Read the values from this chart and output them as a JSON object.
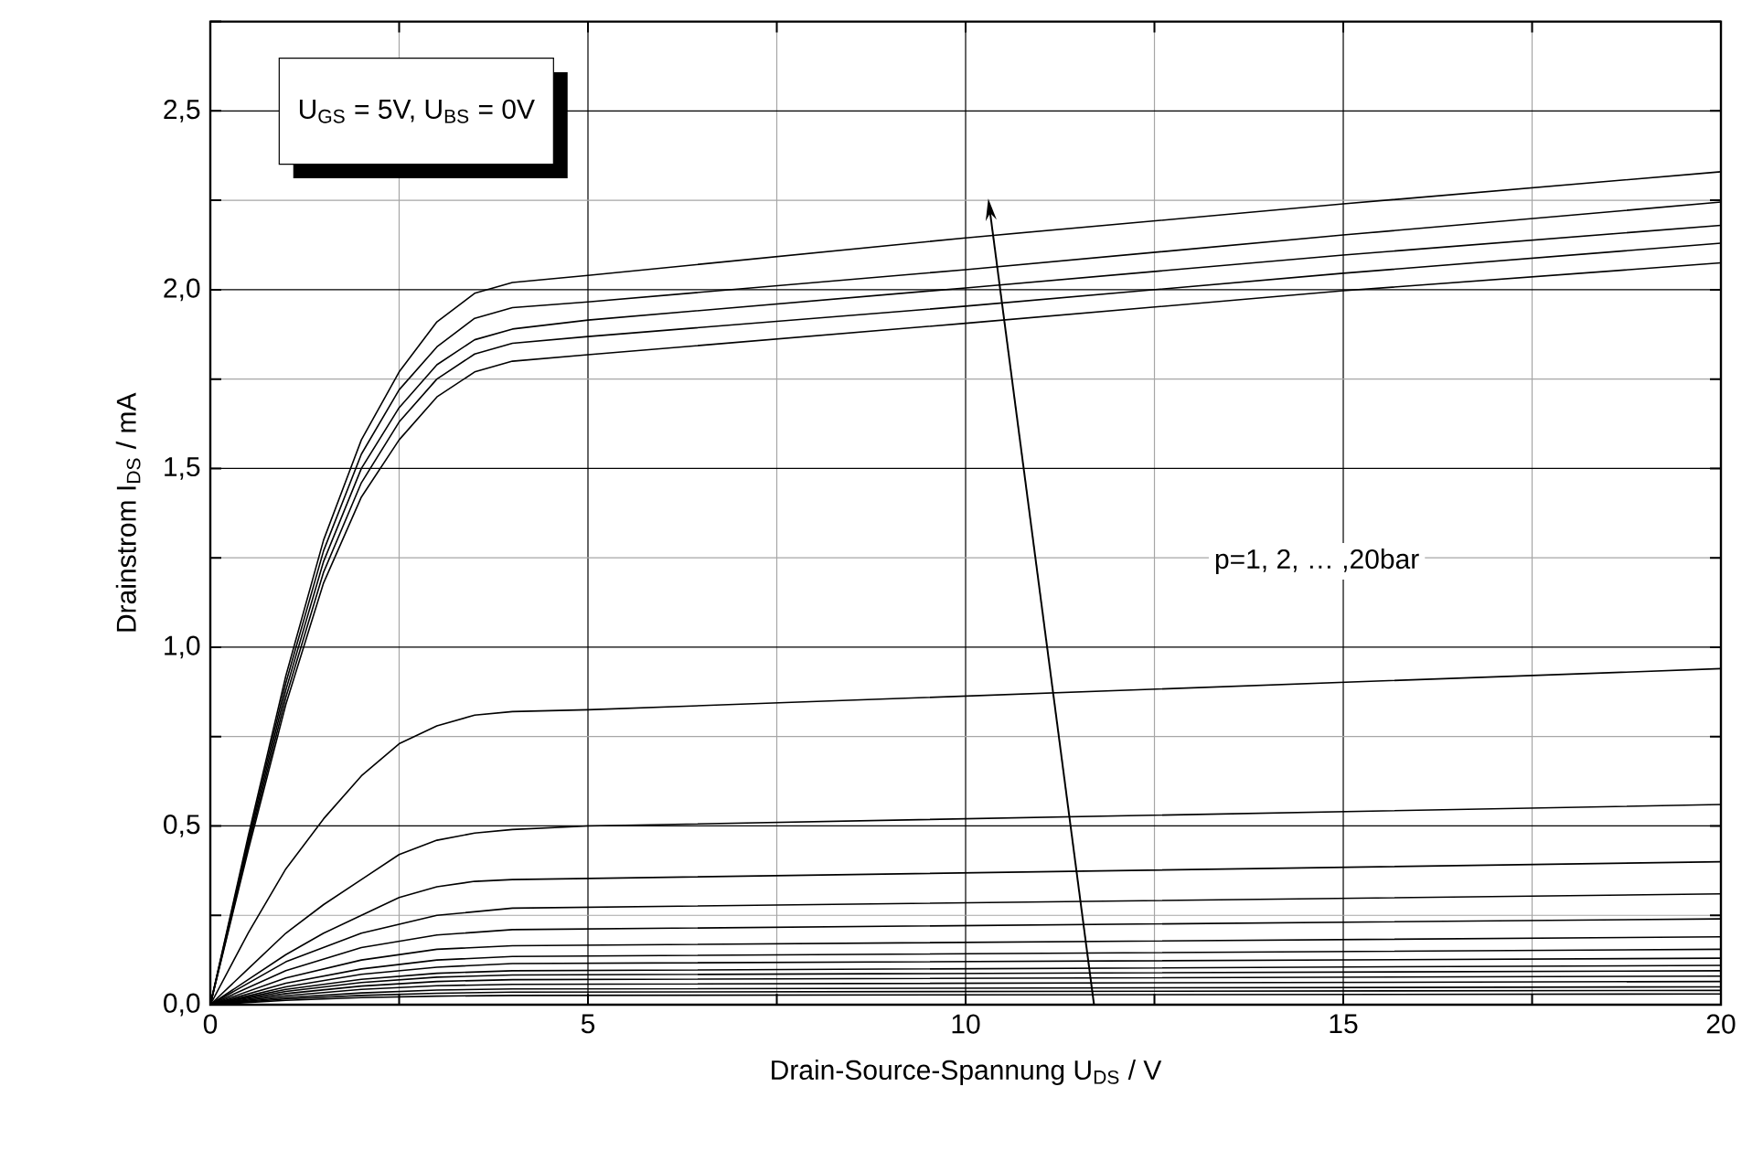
{
  "chart_data": {
    "type": "line",
    "xlabel": "Drain-Source-Spannung U$_{DS}$ / V",
    "ylabel": "Drainstrom I$_{DS}$ / mA",
    "xlim": [
      0,
      20
    ],
    "ylim": [
      0,
      2.75
    ],
    "xticks": [
      0,
      {
        "value": 2.5,
        "label": null
      },
      5,
      {
        "value": 7.5,
        "label": null
      },
      10,
      {
        "value": 12.5,
        "label": null
      },
      15,
      {
        "value": 17.5,
        "label": null
      },
      20
    ],
    "yticks": [
      {
        "value": 0,
        "label": "0,0"
      },
      {
        "value": 0.25,
        "label": null
      },
      {
        "value": 0.5,
        "label": "0,5"
      },
      {
        "value": 0.75,
        "label": null
      },
      {
        "value": 1.0,
        "label": "1,0"
      },
      {
        "value": 1.25,
        "label": null
      },
      {
        "value": 1.5,
        "label": "1,5"
      },
      {
        "value": 1.75,
        "label": null
      },
      {
        "value": 2.0,
        "label": "2,0"
      },
      {
        "value": 2.25,
        "label": null
      },
      {
        "value": 2.5,
        "label": "2,5"
      },
      {
        "value": 2.75,
        "label": null
      }
    ],
    "grid": true,
    "line_style": "solid",
    "marker": "none",
    "annotations": [
      "U$_{GS}$ = 5V, U$_{BS}$ = 0V",
      "p=1, 2, … ,20bar"
    ],
    "series": [
      {
        "color": "#000000",
        "x": [
          0,
          0.5,
          1,
          1.5,
          2,
          2.5,
          3,
          3.5,
          4,
          5,
          10,
          15,
          20
        ],
        "values": [
          0,
          0.47,
          0.92,
          1.3,
          1.58,
          1.77,
          1.91,
          1.99,
          2.02,
          2.04,
          2.145,
          2.24,
          2.33
        ]
      },
      {
        "color": "#000000",
        "x": [
          0,
          0.5,
          1,
          1.5,
          2,
          2.5,
          3,
          3.5,
          4,
          5,
          10,
          15,
          20
        ],
        "values": [
          0,
          0.46,
          0.9,
          1.27,
          1.54,
          1.72,
          1.84,
          1.92,
          1.95,
          1.966,
          2.056,
          2.153,
          2.245
        ]
      },
      {
        "color": "#000000",
        "x": [
          0,
          0.5,
          1,
          1.5,
          2,
          2.5,
          3,
          3.5,
          4,
          5,
          10,
          15,
          20
        ],
        "values": [
          0,
          0.45,
          0.88,
          1.24,
          1.5,
          1.67,
          1.79,
          1.86,
          1.89,
          1.915,
          2.005,
          2.097,
          2.18
        ]
      },
      {
        "color": "#000000",
        "x": [
          0,
          0.5,
          1,
          1.5,
          2,
          2.5,
          3,
          3.5,
          4,
          5,
          10,
          15,
          20
        ],
        "values": [
          0,
          0.44,
          0.86,
          1.21,
          1.46,
          1.63,
          1.75,
          1.82,
          1.85,
          1.869,
          1.954,
          2.046,
          2.13
        ]
      },
      {
        "color": "#000000",
        "x": [
          0,
          0.5,
          1,
          1.5,
          2,
          2.5,
          3,
          3.5,
          4,
          5,
          10,
          15,
          20
        ],
        "values": [
          0,
          0.43,
          0.84,
          1.18,
          1.42,
          1.58,
          1.7,
          1.77,
          1.8,
          1.818,
          1.906,
          1.997,
          2.075
        ]
      },
      {
        "color": "#000000",
        "x": [
          0,
          0.5,
          1,
          1.5,
          2,
          2.5,
          3,
          3.5,
          4,
          5,
          20
        ],
        "values": [
          0,
          0.2,
          0.38,
          0.52,
          0.64,
          0.73,
          0.78,
          0.81,
          0.82,
          0.825,
          0.94
        ]
      },
      {
        "color": "#000000",
        "x": [
          0,
          0.5,
          1,
          1.5,
          2,
          2.5,
          3,
          3.5,
          4,
          5,
          20
        ],
        "values": [
          0,
          0.1,
          0.2,
          0.28,
          0.35,
          0.42,
          0.46,
          0.48,
          0.49,
          0.5,
          0.56
        ]
      },
      {
        "color": "#000000",
        "x": [
          0,
          0.5,
          1,
          1.5,
          2,
          2.5,
          3,
          3.5,
          4,
          20
        ],
        "values": [
          0,
          0.07,
          0.14,
          0.2,
          0.25,
          0.3,
          0.33,
          0.345,
          0.35,
          0.4
        ]
      },
      {
        "color": "#000000",
        "x": [
          0,
          1,
          2,
          3,
          4,
          20
        ],
        "values": [
          0,
          0.12,
          0.2,
          0.25,
          0.27,
          0.31
        ]
      },
      {
        "color": "#000000",
        "x": [
          0,
          1,
          2,
          3,
          4,
          20
        ],
        "values": [
          0,
          0.095,
          0.16,
          0.195,
          0.21,
          0.24
        ]
      },
      {
        "color": "#000000",
        "x": [
          0,
          1,
          2,
          3,
          4,
          20
        ],
        "values": [
          0,
          0.075,
          0.125,
          0.155,
          0.165,
          0.19
        ]
      },
      {
        "color": "#000000",
        "x": [
          0,
          1,
          2,
          3,
          4,
          20
        ],
        "values": [
          0,
          0.06,
          0.1,
          0.125,
          0.135,
          0.155
        ]
      },
      {
        "color": "#000000",
        "x": [
          0,
          1,
          2,
          3,
          4,
          20
        ],
        "values": [
          0,
          0.05,
          0.085,
          0.105,
          0.115,
          0.13
        ]
      },
      {
        "color": "#000000",
        "x": [
          0,
          1,
          2,
          3,
          4,
          20
        ],
        "values": [
          0,
          0.043,
          0.071,
          0.088,
          0.095,
          0.11
        ]
      },
      {
        "color": "#000000",
        "x": [
          0,
          1,
          2,
          3,
          4,
          20
        ],
        "values": [
          0,
          0.037,
          0.062,
          0.077,
          0.083,
          0.095
        ]
      },
      {
        "color": "#000000",
        "x": [
          0,
          1,
          2,
          3,
          4,
          20
        ],
        "values": [
          0,
          0.031,
          0.052,
          0.065,
          0.07,
          0.08
        ]
      },
      {
        "color": "#000000",
        "x": [
          0,
          1,
          2,
          3,
          4,
          20
        ],
        "values": [
          0,
          0.025,
          0.043,
          0.053,
          0.057,
          0.065
        ]
      },
      {
        "color": "#000000",
        "x": [
          0,
          1,
          2,
          3,
          4,
          20
        ],
        "values": [
          0,
          0.02,
          0.033,
          0.041,
          0.044,
          0.05
        ]
      },
      {
        "color": "#000000",
        "x": [
          0,
          1,
          2,
          3,
          4,
          20
        ],
        "values": [
          0,
          0.016,
          0.026,
          0.032,
          0.035,
          0.04
        ]
      },
      {
        "color": "#000000",
        "x": [
          0,
          1,
          2,
          3,
          4,
          20
        ],
        "values": [
          0,
          0.012,
          0.02,
          0.024,
          0.026,
          0.03
        ]
      }
    ]
  }
}
